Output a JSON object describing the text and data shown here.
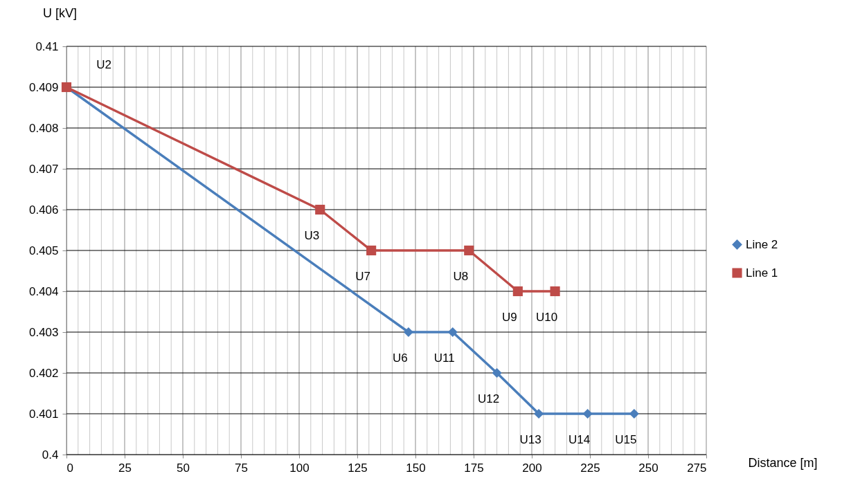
{
  "chart_data": {
    "type": "line",
    "xlabel": "Distance [m]",
    "ylabel": "U [kV]",
    "xlim": [
      0,
      275
    ],
    "ylim": [
      0.4,
      0.41
    ],
    "xticks": [
      0,
      {
        "value": 5,
        "label": null
      },
      {
        "value": 10,
        "label": null
      },
      {
        "value": 15,
        "label": null
      },
      {
        "value": 20,
        "label": null
      },
      25,
      {
        "value": 30,
        "label": null
      },
      {
        "value": 35,
        "label": null
      },
      {
        "value": 40,
        "label": null
      },
      {
        "value": 45,
        "label": null
      },
      50,
      {
        "value": 55,
        "label": null
      },
      {
        "value": 60,
        "label": null
      },
      {
        "value": 65,
        "label": null
      },
      {
        "value": 70,
        "label": null
      },
      75,
      {
        "value": 80,
        "label": null
      },
      {
        "value": 85,
        "label": null
      },
      {
        "value": 90,
        "label": null
      },
      {
        "value": 95,
        "label": null
      },
      100,
      {
        "value": 105,
        "label": null
      },
      {
        "value": 110,
        "label": null
      },
      {
        "value": 115,
        "label": null
      },
      {
        "value": 120,
        "label": null
      },
      125,
      {
        "value": 130,
        "label": null
      },
      {
        "value": 135,
        "label": null
      },
      {
        "value": 140,
        "label": null
      },
      {
        "value": 145,
        "label": null
      },
      150,
      {
        "value": 155,
        "label": null
      },
      {
        "value": 160,
        "label": null
      },
      {
        "value": 165,
        "label": null
      },
      {
        "value": 170,
        "label": null
      },
      175,
      {
        "value": 180,
        "label": null
      },
      {
        "value": 185,
        "label": null
      },
      {
        "value": 190,
        "label": null
      },
      {
        "value": 195,
        "label": null
      },
      200,
      {
        "value": 205,
        "label": null
      },
      {
        "value": 210,
        "label": null
      },
      {
        "value": 215,
        "label": null
      },
      {
        "value": 220,
        "label": null
      },
      225,
      {
        "value": 230,
        "label": null
      },
      {
        "value": 235,
        "label": null
      },
      {
        "value": 240,
        "label": null
      },
      {
        "value": 245,
        "label": null
      },
      250,
      {
        "value": 255,
        "label": null
      },
      {
        "value": 260,
        "label": null
      },
      {
        "value": 265,
        "label": null
      },
      {
        "value": 270,
        "label": null
      },
      275
    ],
    "yticks": [
      0.4,
      0.401,
      0.402,
      0.403,
      0.404,
      0.405,
      0.406,
      0.407,
      0.408,
      0.409,
      0.41
    ],
    "grid": true,
    "legend": "right",
    "line_style": "solid",
    "series": [
      {
        "name": "Line 2",
        "color": "#4a7ebb",
        "marker": "diamond",
        "x": [
          0,
          147,
          166,
          185,
          203,
          224,
          244
        ],
        "values": [
          0.409,
          0.403,
          0.403,
          0.402,
          0.401,
          0.401,
          0.401
        ]
      },
      {
        "name": "Line 1",
        "color": "#be4b48",
        "marker": "square",
        "x": [
          0,
          109,
          131,
          173,
          194,
          210
        ],
        "values": [
          0.409,
          0.406,
          0.405,
          0.405,
          0.404,
          0.404
        ]
      }
    ],
    "annotations": [
      {
        "text": "U2",
        "x": 0,
        "y": 0.409
      },
      {
        "text": "U3",
        "x": 109,
        "y": 0.406
      },
      {
        "text": "U7",
        "x": 131,
        "y": 0.405
      },
      {
        "text": "U8",
        "x": 173,
        "y": 0.405
      },
      {
        "text": "U9",
        "x": 194,
        "y": 0.404
      },
      {
        "text": "U10",
        "x": 210,
        "y": 0.404
      },
      {
        "text": "U6",
        "x": 147,
        "y": 0.403
      },
      {
        "text": "U11",
        "x": 166,
        "y": 0.403
      },
      {
        "text": "U12",
        "x": 185,
        "y": 0.402
      },
      {
        "text": "U13",
        "x": 203,
        "y": 0.401
      },
      {
        "text": "U14",
        "x": 224,
        "y": 0.401
      },
      {
        "text": "U15",
        "x": 244,
        "y": 0.401
      }
    ]
  }
}
